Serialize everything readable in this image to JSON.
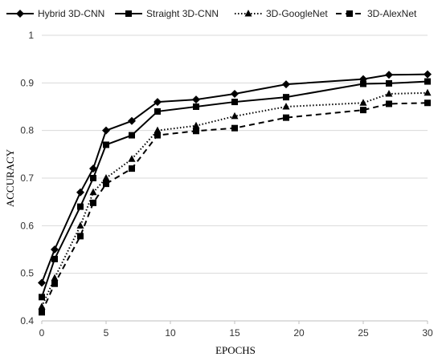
{
  "chart_data": {
    "type": "line",
    "title": "",
    "xlabel": "EPOCHS",
    "ylabel": "ACCURACY",
    "xlim": [
      0,
      30
    ],
    "ylim": [
      0.4,
      1
    ],
    "xticks": [
      0,
      5,
      10,
      15,
      20,
      25,
      30
    ],
    "yticks": [
      0.4,
      0.5,
      0.6,
      0.7,
      0.8,
      0.9,
      1
    ],
    "xtick_labels": [
      "0",
      "5",
      "10",
      "15",
      "20",
      "25",
      "30"
    ],
    "ytick_labels": [
      "0.4",
      "0.5",
      "0.6",
      "0.7",
      "0.8",
      "0.9",
      "1"
    ],
    "grid": "horizontal",
    "legend_position": "top",
    "series": [
      {
        "name": "Hybrid 3D-CNN",
        "color": "#000000",
        "line_style": "solid",
        "marker": "diamond",
        "x": [
          0,
          1,
          3,
          4,
          5,
          7,
          9,
          12,
          15,
          19,
          25,
          27,
          30
        ],
        "y": [
          0.48,
          0.55,
          0.67,
          0.72,
          0.8,
          0.82,
          0.86,
          0.865,
          0.877,
          0.897,
          0.908,
          0.917,
          0.918
        ]
      },
      {
        "name": "Straight 3D-CNN",
        "color": "#000000",
        "line_style": "solid",
        "marker": "square",
        "x": [
          0,
          1,
          3,
          4,
          5,
          7,
          9,
          12,
          15,
          19,
          25,
          27,
          30
        ],
        "y": [
          0.45,
          0.53,
          0.64,
          0.7,
          0.77,
          0.79,
          0.84,
          0.85,
          0.86,
          0.87,
          0.898,
          0.899,
          0.903
        ]
      },
      {
        "name": "3D-GoogleNet",
        "color": "#000000",
        "line_style": "dotted",
        "marker": "triangle",
        "x": [
          0,
          1,
          3,
          4,
          5,
          7,
          9,
          12,
          15,
          19,
          25,
          27,
          30
        ],
        "y": [
          0.43,
          0.49,
          0.6,
          0.67,
          0.7,
          0.74,
          0.8,
          0.81,
          0.83,
          0.85,
          0.858,
          0.877,
          0.879
        ]
      },
      {
        "name": "3D-AlexNet",
        "color": "#000000",
        "line_style": "dashed",
        "marker": "square",
        "x": [
          0,
          1,
          3,
          4,
          5,
          7,
          9,
          12,
          15,
          19,
          25,
          27,
          30
        ],
        "y": [
          0.418,
          0.478,
          0.578,
          0.648,
          0.688,
          0.72,
          0.79,
          0.799,
          0.805,
          0.827,
          0.843,
          0.856,
          0.858
        ]
      }
    ]
  }
}
